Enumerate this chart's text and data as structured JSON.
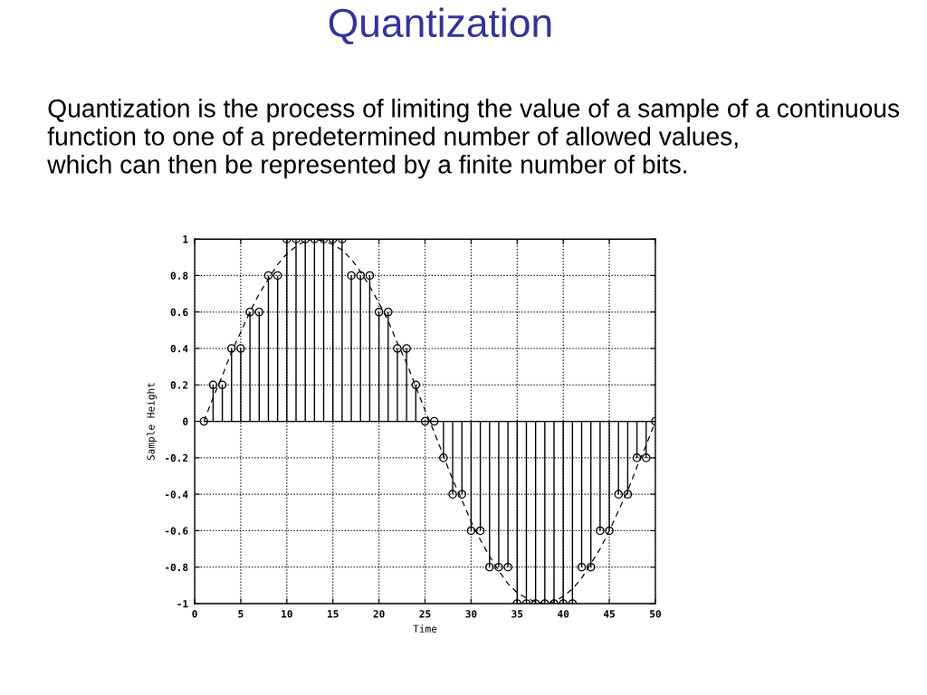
{
  "chart_data": {
    "type": "lollipop",
    "title": "Quantization",
    "subtitle": "Quantization is the process of limiting the value of a sample of a continuous\nfunction to one of a predetermined number of allowed values,\nwhich can then be represented by a finite number of bits.",
    "xlabel": "Time",
    "ylabel": "Sample Height",
    "x": [
      1,
      2,
      3,
      4,
      5,
      6,
      7,
      8,
      9,
      10,
      11,
      12,
      13,
      14,
      15,
      16,
      17,
      18,
      19,
      20,
      21,
      22,
      23,
      24,
      25,
      26,
      27,
      28,
      29,
      30,
      31,
      32,
      33,
      34,
      35,
      36,
      37,
      38,
      39,
      40,
      41,
      42,
      43,
      44,
      45,
      46,
      47,
      48,
      49,
      50
    ],
    "series": [
      {
        "color": "#000000",
        "marker": "circle",
        "values": [
          0,
          0.2,
          0.2,
          0.4,
          0.4,
          0.6,
          0.6,
          0.8,
          0.8,
          1,
          1,
          1,
          1,
          1,
          1,
          1,
          0.8,
          0.8,
          0.8,
          0.6,
          0.6,
          0.4,
          0.4,
          0.2,
          0,
          0,
          -0.2,
          -0.4,
          -0.4,
          -0.6,
          -0.6,
          -0.8,
          -0.8,
          -0.8,
          -1,
          -1,
          -1,
          -1,
          -1,
          -1,
          -1,
          -0.8,
          -0.8,
          -0.6,
          -0.6,
          -0.4,
          -0.4,
          -0.2,
          -0.2,
          0
        ]
      },
      {
        "type": "line",
        "color": "#000000",
        "marker": "none",
        "line_style": "dashed",
        "values": [
          0,
          0.13,
          0.25,
          0.38,
          0.49,
          0.6,
          0.7,
          0.78,
          0.86,
          0.92,
          0.96,
          0.99,
          1,
          0.99,
          0.97,
          0.94,
          0.89,
          0.82,
          0.74,
          0.65,
          0.55,
          0.43,
          0.32,
          0.19,
          0.06,
          -0.06,
          -0.19,
          -0.32,
          -0.43,
          -0.55,
          -0.65,
          -0.74,
          -0.82,
          -0.89,
          -0.94,
          -0.97,
          -0.99,
          -1,
          -0.99,
          -0.96,
          -0.92,
          -0.86,
          -0.78,
          -0.7,
          -0.6,
          -0.49,
          -0.38,
          -0.25,
          -0.13,
          0
        ]
      }
    ],
    "xlim": [
      0,
      50
    ],
    "ylim": [
      -1,
      1
    ],
    "xticks": [
      0,
      5,
      10,
      15,
      20,
      25,
      30,
      35,
      40,
      45,
      50
    ],
    "yticks": [
      -1,
      -0.8,
      -0.6,
      -0.4,
      -0.2,
      0,
      0.2,
      0.4,
      0.6,
      0.8,
      1
    ],
    "grid": true
  }
}
